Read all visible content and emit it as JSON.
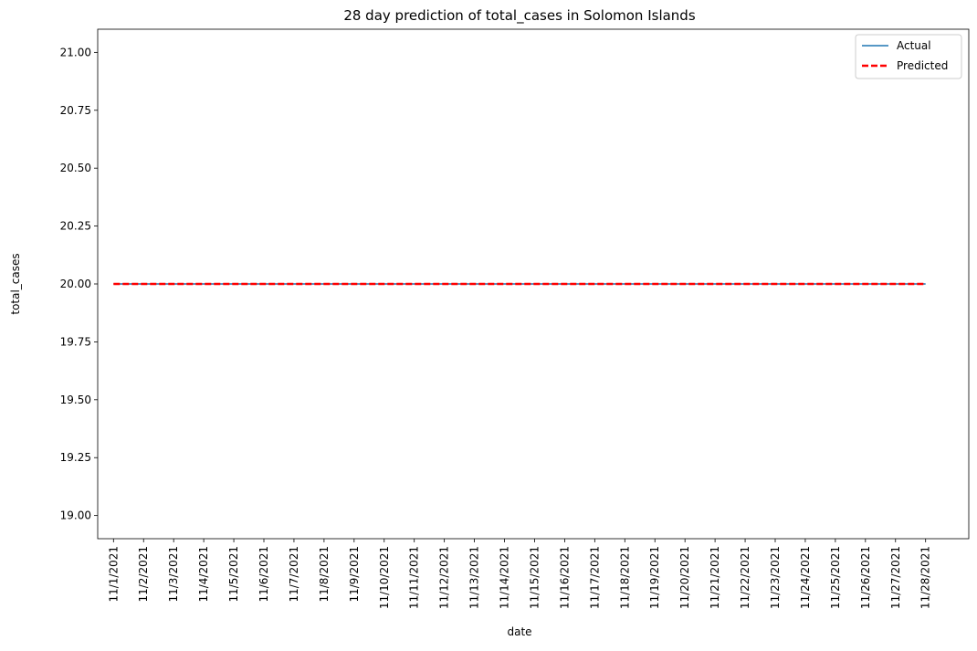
{
  "chart_data": {
    "type": "line",
    "title": "28 day prediction of total_cases in Solomon Islands",
    "xlabel": "date",
    "ylabel": "total_cases",
    "categories": [
      "11/1/2021",
      "11/2/2021",
      "11/3/2021",
      "11/4/2021",
      "11/5/2021",
      "11/6/2021",
      "11/7/2021",
      "11/8/2021",
      "11/9/2021",
      "11/10/2021",
      "11/11/2021",
      "11/12/2021",
      "11/13/2021",
      "11/14/2021",
      "11/15/2021",
      "11/16/2021",
      "11/17/2021",
      "11/18/2021",
      "11/19/2021",
      "11/20/2021",
      "11/21/2021",
      "11/22/2021",
      "11/23/2021",
      "11/24/2021",
      "11/25/2021",
      "11/26/2021",
      "11/27/2021",
      "11/28/2021"
    ],
    "yticks": [
      "19.00",
      "19.25",
      "19.50",
      "19.75",
      "20.00",
      "20.25",
      "20.50",
      "20.75",
      "21.00"
    ],
    "ylim": [
      18.9,
      21.1
    ],
    "grid": false,
    "legend_position": "top-right",
    "series": [
      {
        "name": "Actual",
        "color": "#1f77b4",
        "style": "solid",
        "values": [
          20,
          20,
          20,
          20,
          20,
          20,
          20,
          20,
          20,
          20,
          20,
          20,
          20,
          20,
          20,
          20,
          20,
          20,
          20,
          20,
          20,
          20,
          20,
          20,
          20,
          20,
          20,
          20
        ]
      },
      {
        "name": "Predicted",
        "color": "#ff0000",
        "style": "dashed",
        "values": [
          20,
          20,
          20,
          20,
          20,
          20,
          20,
          20,
          20,
          20,
          20,
          20,
          20,
          20,
          20,
          20,
          20,
          20,
          20,
          20,
          20,
          20,
          20,
          20,
          20,
          20,
          20,
          20
        ]
      }
    ]
  }
}
